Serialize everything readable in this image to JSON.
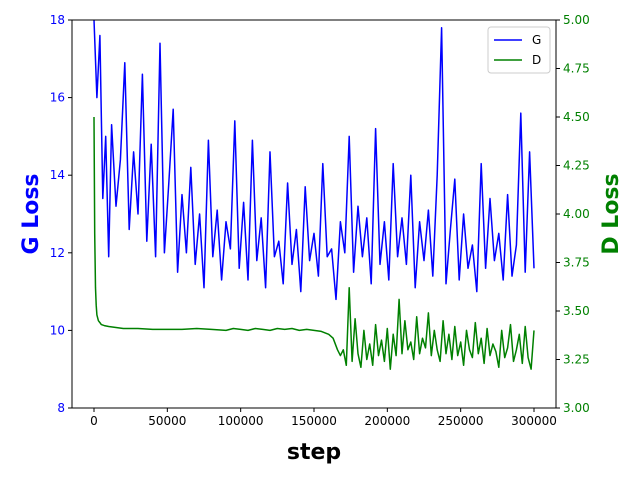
{
  "chart_data": {
    "type": "line",
    "title": "",
    "xlabel": "step",
    "ylabel_left": "G Loss",
    "ylabel_right": "D Loss",
    "xlim": [
      -15000,
      315000
    ],
    "ylim_left": [
      8,
      18
    ],
    "ylim_right": [
      3.0,
      5.0
    ],
    "x_ticks": [
      0,
      50000,
      100000,
      150000,
      200000,
      250000,
      300000
    ],
    "y_ticks_left": [
      8,
      10,
      12,
      14,
      16,
      18
    ],
    "y_ticks_right": [
      "3.00",
      "3.25",
      "3.50",
      "3.75",
      "4.00",
      "4.25",
      "4.50",
      "4.75",
      "5.00"
    ],
    "grid": false,
    "legend_position": "top-right",
    "colors": {
      "G": "#0000ff",
      "D": "#008000",
      "axis_left": "#0000ff",
      "axis_right": "#008000"
    },
    "series": [
      {
        "name": "G",
        "axis": "left",
        "x": [
          0,
          2000,
          4000,
          6000,
          8000,
          10000,
          12000,
          15000,
          18000,
          21000,
          24000,
          27000,
          30000,
          33000,
          36000,
          39000,
          42000,
          45000,
          48000,
          51000,
          54000,
          57000,
          60000,
          63000,
          66000,
          69000,
          72000,
          75000,
          78000,
          81000,
          84000,
          87000,
          90000,
          93000,
          96000,
          99000,
          102000,
          105000,
          108000,
          111000,
          114000,
          117000,
          120000,
          123000,
          126000,
          129000,
          132000,
          135000,
          138000,
          141000,
          144000,
          147000,
          150000,
          153000,
          156000,
          159000,
          162000,
          165000,
          168000,
          171000,
          174000,
          177000,
          180000,
          183000,
          186000,
          189000,
          192000,
          195000,
          198000,
          201000,
          204000,
          207000,
          210000,
          213000,
          216000,
          219000,
          222000,
          225000,
          228000,
          231000,
          234000,
          237000,
          240000,
          243000,
          246000,
          249000,
          252000,
          255000,
          258000,
          261000,
          264000,
          267000,
          270000,
          273000,
          276000,
          279000,
          282000,
          285000,
          288000,
          291000,
          294000,
          297000,
          300000
        ],
        "values": [
          18.0,
          16.0,
          17.6,
          13.4,
          15.0,
          11.9,
          15.3,
          13.2,
          14.4,
          16.9,
          12.6,
          14.6,
          13.0,
          16.6,
          12.3,
          14.8,
          11.9,
          17.4,
          12.0,
          13.8,
          15.7,
          11.5,
          13.5,
          12.0,
          14.2,
          11.7,
          13.0,
          11.1,
          14.9,
          11.9,
          13.1,
          11.3,
          12.8,
          12.1,
          15.4,
          11.6,
          13.3,
          11.3,
          14.9,
          11.8,
          12.9,
          11.1,
          14.6,
          11.9,
          12.3,
          11.2,
          13.8,
          11.7,
          12.6,
          11.0,
          13.7,
          11.8,
          12.5,
          11.4,
          14.3,
          11.9,
          12.1,
          10.8,
          12.8,
          12.0,
          15.0,
          11.5,
          13.2,
          11.9,
          12.9,
          11.2,
          15.2,
          11.7,
          12.8,
          11.3,
          14.3,
          11.9,
          12.9,
          11.7,
          14.0,
          11.1,
          12.8,
          11.8,
          13.1,
          11.4,
          14.0,
          17.8,
          11.2,
          12.6,
          13.9,
          11.3,
          13.0,
          11.6,
          12.2,
          11.0,
          14.3,
          11.6,
          13.4,
          11.8,
          12.5,
          11.3,
          13.5,
          11.4,
          12.2,
          15.6,
          11.5,
          14.6,
          11.6
        ]
      },
      {
        "name": "D",
        "axis": "right",
        "x": [
          0,
          500,
          1000,
          1500,
          2000,
          3000,
          4000,
          5000,
          7000,
          10000,
          15000,
          20000,
          30000,
          40000,
          50000,
          60000,
          70000,
          80000,
          90000,
          95000,
          100000,
          105000,
          110000,
          115000,
          120000,
          125000,
          130000,
          135000,
          140000,
          145000,
          150000,
          155000,
          160000,
          163000,
          166000,
          168000,
          170000,
          172000,
          174000,
          176000,
          178000,
          180000,
          182000,
          184000,
          186000,
          188000,
          190000,
          192000,
          194000,
          196000,
          198000,
          200000,
          202000,
          204000,
          206000,
          208000,
          210000,
          212000,
          214000,
          216000,
          218000,
          220000,
          222000,
          224000,
          226000,
          228000,
          230000,
          232000,
          234000,
          236000,
          238000,
          240000,
          242000,
          244000,
          246000,
          248000,
          250000,
          252000,
          254000,
          256000,
          258000,
          260000,
          262000,
          264000,
          266000,
          268000,
          270000,
          272000,
          274000,
          276000,
          278000,
          280000,
          282000,
          284000,
          286000,
          288000,
          290000,
          292000,
          294000,
          296000,
          298000,
          300000
        ],
        "values": [
          4.5,
          3.9,
          3.62,
          3.53,
          3.48,
          3.45,
          3.44,
          3.43,
          3.425,
          3.42,
          3.415,
          3.41,
          3.41,
          3.405,
          3.405,
          3.405,
          3.41,
          3.405,
          3.4,
          3.41,
          3.405,
          3.4,
          3.41,
          3.405,
          3.4,
          3.41,
          3.405,
          3.41,
          3.4,
          3.405,
          3.4,
          3.395,
          3.38,
          3.36,
          3.3,
          3.27,
          3.3,
          3.22,
          3.62,
          3.24,
          3.46,
          3.28,
          3.21,
          3.4,
          3.25,
          3.33,
          3.22,
          3.43,
          3.27,
          3.35,
          3.24,
          3.41,
          3.2,
          3.38,
          3.27,
          3.56,
          3.28,
          3.45,
          3.3,
          3.34,
          3.25,
          3.47,
          3.28,
          3.36,
          3.31,
          3.49,
          3.27,
          3.4,
          3.3,
          3.24,
          3.45,
          3.28,
          3.38,
          3.25,
          3.42,
          3.27,
          3.34,
          3.22,
          3.4,
          3.3,
          3.26,
          3.44,
          3.28,
          3.36,
          3.23,
          3.41,
          3.27,
          3.33,
          3.29,
          3.21,
          3.4,
          3.26,
          3.31,
          3.43,
          3.24,
          3.3,
          3.38,
          3.23,
          3.42,
          3.26,
          3.2,
          3.4
        ]
      }
    ]
  }
}
